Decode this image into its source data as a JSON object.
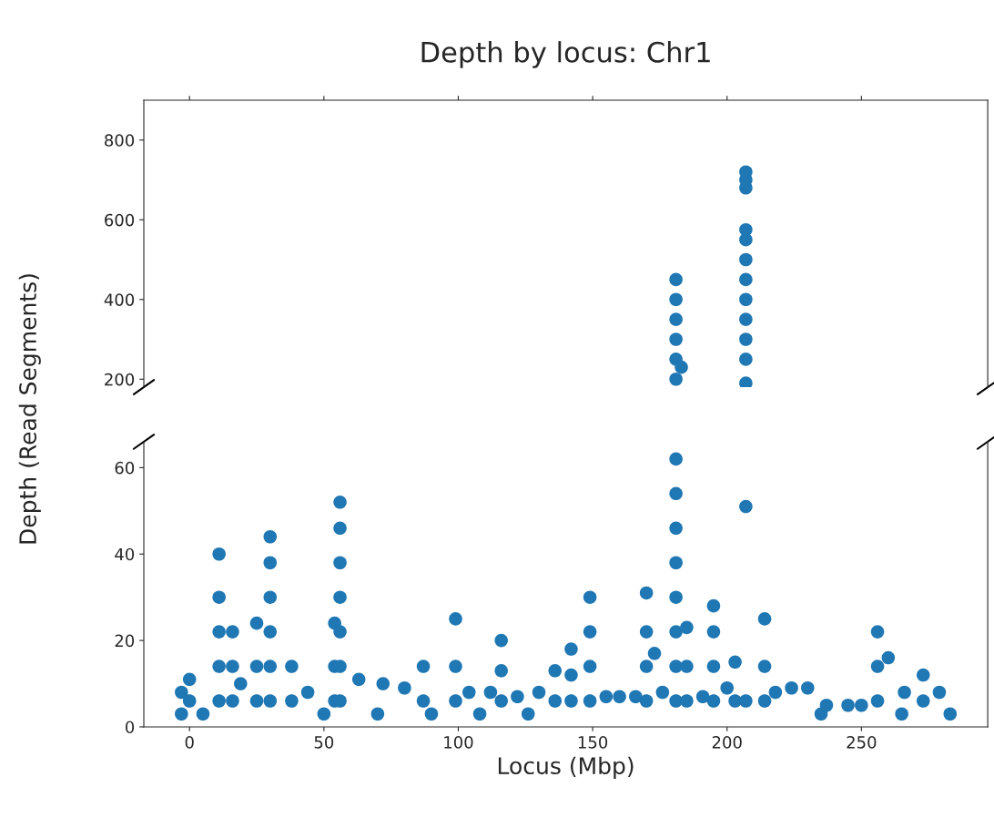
{
  "chart_data": [
    {
      "type": "scatter",
      "title": "Depth by locus: Chr1",
      "ylabel": "Depth (Read Segments)",
      "xlim": [
        -17,
        297
      ],
      "xticks": [
        0,
        50,
        100,
        150,
        200,
        250
      ],
      "ylim": [
        180,
        900
      ],
      "yticks": [
        200,
        400,
        600,
        800
      ],
      "tick_labels": "y",
      "marker": "circle",
      "grid": false,
      "series": [
        {
          "color": "#1f77b4",
          "x": [
            181,
            181,
            181,
            181,
            181,
            181,
            183,
            207,
            207,
            207,
            207,
            207,
            207,
            207,
            207,
            207,
            207,
            207,
            207
          ],
          "values": [
            200,
            250,
            300,
            350,
            400,
            450,
            230,
            190,
            250,
            300,
            350,
            400,
            450,
            500,
            550,
            575,
            680,
            700,
            720
          ]
        }
      ]
    },
    {
      "type": "scatter",
      "xlabel": "Locus (Mbp)",
      "xlim": [
        -17,
        297
      ],
      "xticks": [
        0,
        50,
        100,
        150,
        200,
        250
      ],
      "ylim": [
        0,
        66
      ],
      "yticks": [
        0,
        20,
        40,
        60
      ],
      "marker": "circle",
      "grid": false,
      "series": [
        {
          "color": "#1f77b4",
          "x": [
            -3,
            -3,
            0,
            0,
            5,
            11,
            11,
            11,
            11,
            11,
            16,
            16,
            16,
            19,
            25,
            25,
            25,
            30,
            30,
            30,
            30,
            30,
            30,
            38,
            38,
            44,
            50,
            54,
            54,
            54,
            56,
            56,
            56,
            56,
            56,
            56,
            56,
            63,
            70,
            72,
            80,
            87,
            87,
            90,
            99,
            99,
            99,
            104,
            108,
            112,
            116,
            116,
            116,
            122,
            126,
            130,
            136,
            136,
            142,
            142,
            142,
            149,
            149,
            149,
            149,
            155,
            160,
            166,
            170,
            170,
            170,
            170,
            173,
            176,
            181,
            181,
            181,
            181,
            181,
            181,
            181,
            181,
            185,
            185,
            185,
            191,
            195,
            195,
            195,
            195,
            200,
            203,
            203,
            207,
            207,
            214,
            214,
            214,
            218,
            224,
            230,
            235,
            237,
            245,
            250,
            256,
            256,
            256,
            260,
            265,
            266,
            273,
            273,
            279,
            283
          ],
          "values": [
            3,
            8,
            6,
            11,
            3,
            6,
            14,
            22,
            30,
            40,
            6,
            14,
            22,
            10,
            6,
            14,
            24,
            6,
            14,
            22,
            30,
            38,
            44,
            6,
            14,
            8,
            3,
            6,
            14,
            24,
            6,
            14,
            22,
            30,
            38,
            46,
            52,
            11,
            3,
            10,
            9,
            6,
            14,
            3,
            6,
            14,
            25,
            8,
            3,
            8,
            6,
            13,
            20,
            7,
            3,
            8,
            6,
            13,
            6,
            12,
            18,
            6,
            14,
            22,
            30,
            7,
            7,
            7,
            6,
            14,
            22,
            31,
            17,
            8,
            6,
            14,
            22,
            30,
            38,
            46,
            54,
            62,
            6,
            14,
            23,
            7,
            6,
            14,
            22,
            28,
            9,
            6,
            15,
            6,
            51,
            6,
            14,
            25,
            8,
            9,
            9,
            3,
            5,
            5,
            5,
            6,
            14,
            22,
            16,
            3,
            8,
            6,
            12,
            8,
            3
          ]
        }
      ]
    }
  ]
}
